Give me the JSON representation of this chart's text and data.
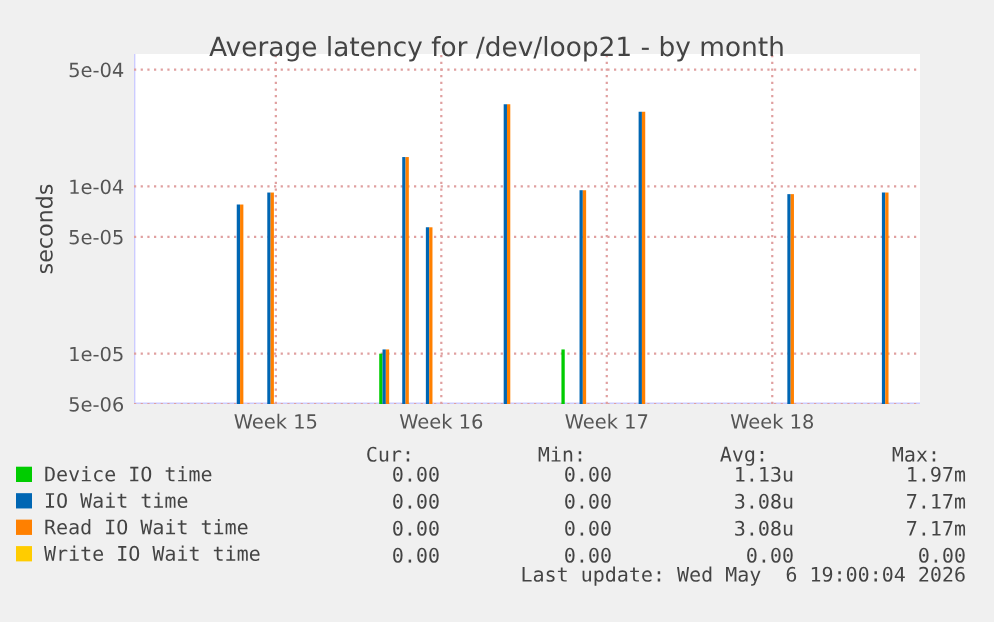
{
  "chart_data": {
    "type": "bar",
    "title": "Average latency for /dev/loop21 - by month",
    "ylabel": "seconds",
    "x": [
      "2026-04-07T22:00",
      "2026-04-09T05:00",
      "2026-04-14T02:00",
      "2026-04-14T22:00",
      "2026-04-15T22:00",
      "2026-04-19T05:00",
      "2026-04-21T19:00",
      "2026-04-22T10:00",
      "2026-04-24T22:00",
      "2026-05-01T05:00",
      "2026-05-05T05:00"
    ],
    "series": [
      {
        "name": "Device IO time",
        "color": "#00cc00",
        "values": [
          null,
          null,
          1e-05,
          null,
          null,
          null,
          1.06e-05,
          null,
          null,
          null,
          null
        ]
      },
      {
        "name": "IO Wait time",
        "color": "#0066b3",
        "values": [
          7.8e-05,
          9.2e-05,
          1.06e-05,
          0.00015,
          5.7e-05,
          0.00031,
          null,
          9.5e-05,
          0.00028,
          9e-05,
          9.2e-05
        ]
      },
      {
        "name": "Read IO Wait time",
        "color": "#ff8000",
        "values": [
          7.8e-05,
          9.2e-05,
          1.06e-05,
          0.00015,
          5.7e-05,
          0.00031,
          null,
          9.5e-05,
          0.00028,
          9e-05,
          9.2e-05
        ]
      },
      {
        "name": "Write IO Wait time",
        "color": "#ffcc00",
        "values": [
          null,
          null,
          null,
          null,
          null,
          null,
          null,
          null,
          null,
          null,
          null
        ]
      }
    ],
    "log": "y",
    "xlim": [
      "2026-04-03T12:00",
      "2026-05-06T18:00"
    ],
    "ylim": [
      5e-06,
      0.00062
    ],
    "xticks": [
      {
        "value": "2026-04-09T12:00",
        "label": "Week 15"
      },
      {
        "value": "2026-04-16T12:00",
        "label": "Week 16"
      },
      {
        "value": "2026-04-23T12:00",
        "label": "Week 17"
      },
      {
        "value": "2026-04-30T12:00",
        "label": "Week 18"
      }
    ],
    "yticks": [
      {
        "value": 5e-06,
        "label": "5e-06"
      },
      {
        "value": 1e-05,
        "label": "1e-05"
      },
      {
        "value": 5e-05,
        "label": "5e-05"
      },
      {
        "value": 0.0001,
        "label": "1e-04"
      },
      {
        "value": 0.0005,
        "label": "5e-04"
      }
    ],
    "grid": true,
    "legend": "bottom",
    "annotations": [
      "Cur:",
      "Min:",
      "Avg:",
      "Max:",
      "0.00",
      "0.00",
      "1.13u",
      "1.97m",
      "0.00",
      "0.00",
      "3.08u",
      "7.17m",
      "0.00",
      "0.00",
      "3.08u",
      "7.17m",
      "0.00",
      "0.00",
      "0.00",
      "0.00",
      "Last update: Wed May  6 19:00:04 2026"
    ]
  }
}
